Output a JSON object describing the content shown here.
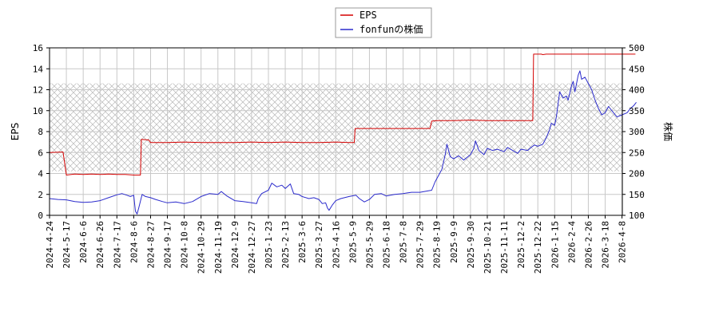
{
  "chart_data": {
    "type": "line",
    "ylabel_left": "EPS",
    "ylabel_right": "株価",
    "y_left_lim": [
      0,
      16
    ],
    "y_left_ticks": [
      "0",
      "2",
      "4",
      "6",
      "8",
      "10",
      "12",
      "14",
      "16"
    ],
    "y_right_lim": [
      100,
      500
    ],
    "y_right_ticks": [
      "100",
      "150",
      "200",
      "250",
      "300",
      "350",
      "400",
      "450",
      "500"
    ],
    "x_ticks": [
      "2024-4-24",
      "2024-5-17",
      "2024-6-6",
      "2024-6-26",
      "2024-7-17",
      "2024-8-6",
      "2024-8-27",
      "2024-9-17",
      "2024-10-8",
      "2024-10-29",
      "2024-11-19",
      "2024-12-9",
      "2024-12-27",
      "2025-1-23",
      "2025-2-13",
      "2025-3-6",
      "2025-3-27",
      "2025-4-16",
      "2025-5-9",
      "2025-5-29",
      "2025-6-18",
      "2025-7-8",
      "2025-7-29",
      "2025-8-19",
      "2025-9-9",
      "2025-9-30",
      "2025-10-21",
      "2025-11-11",
      "2025-12-2",
      "2025-12-22",
      "2026-1-15",
      "2026-2-4",
      "2026-2-26",
      "2026-3-18",
      "2026-4-8"
    ],
    "grid": true,
    "legend_position": "top-center",
    "hatched_band_right_axis": [
      205,
      415
    ],
    "series": [
      {
        "name": "EPS",
        "axis": "left",
        "color": "#d40000",
        "points": [
          [
            0,
            6.0
          ],
          [
            0.8,
            6.05
          ],
          [
            1.0,
            3.85
          ],
          [
            1.5,
            3.95
          ],
          [
            2.0,
            3.9
          ],
          [
            2.5,
            3.95
          ],
          [
            3.0,
            3.9
          ],
          [
            3.5,
            3.95
          ],
          [
            4.0,
            3.9
          ],
          [
            4.5,
            3.9
          ],
          [
            5.0,
            3.85
          ],
          [
            5.4,
            3.85
          ],
          [
            5.45,
            7.25
          ],
          [
            5.9,
            7.2
          ],
          [
            6.0,
            6.95
          ],
          [
            7.0,
            6.95
          ],
          [
            8.0,
            7.0
          ],
          [
            9.0,
            6.95
          ],
          [
            10.0,
            6.95
          ],
          [
            11.0,
            6.95
          ],
          [
            12.0,
            7.0
          ],
          [
            13.0,
            6.95
          ],
          [
            14.0,
            7.0
          ],
          [
            15.0,
            6.95
          ],
          [
            16.0,
            6.95
          ],
          [
            17.0,
            7.0
          ],
          [
            17.8,
            6.95
          ],
          [
            18.1,
            6.95
          ],
          [
            18.15,
            8.3
          ],
          [
            19.0,
            8.3
          ],
          [
            20.0,
            8.3
          ],
          [
            21.0,
            8.3
          ],
          [
            22.0,
            8.3
          ],
          [
            22.6,
            8.3
          ],
          [
            22.7,
            9.0
          ],
          [
            23.0,
            9.05
          ],
          [
            24.0,
            9.05
          ],
          [
            25.0,
            9.1
          ],
          [
            26.0,
            9.05
          ],
          [
            27.0,
            9.05
          ],
          [
            28.0,
            9.05
          ],
          [
            28.7,
            9.05
          ],
          [
            28.75,
            15.4
          ],
          [
            29.2,
            15.4
          ],
          [
            29.3,
            15.35
          ],
          [
            29.5,
            15.4
          ],
          [
            30.0,
            15.4
          ],
          [
            31.0,
            15.4
          ],
          [
            32.0,
            15.4
          ],
          [
            33.0,
            15.4
          ],
          [
            34.0,
            15.4
          ],
          [
            34.8,
            15.4
          ]
        ]
      },
      {
        "name": "fonfunの株価",
        "axis": "right",
        "color": "#2b2bcc",
        "points": [
          [
            0,
            140
          ],
          [
            0.5,
            138
          ],
          [
            1.0,
            137
          ],
          [
            1.5,
            133
          ],
          [
            2.0,
            131
          ],
          [
            2.5,
            132
          ],
          [
            3.0,
            135
          ],
          [
            3.5,
            142
          ],
          [
            4.0,
            149
          ],
          [
            4.3,
            152
          ],
          [
            4.6,
            148
          ],
          [
            4.8,
            145
          ],
          [
            5.0,
            148
          ],
          [
            5.1,
            110
          ],
          [
            5.2,
            103
          ],
          [
            5.3,
            118
          ],
          [
            5.5,
            150
          ],
          [
            5.7,
            145
          ],
          [
            6.0,
            142
          ],
          [
            6.3,
            138
          ],
          [
            6.7,
            133
          ],
          [
            7.0,
            130
          ],
          [
            7.5,
            132
          ],
          [
            8.0,
            128
          ],
          [
            8.5,
            133
          ],
          [
            9.0,
            145
          ],
          [
            9.5,
            152
          ],
          [
            10.0,
            150
          ],
          [
            10.2,
            157
          ],
          [
            10.5,
            147
          ],
          [
            11.0,
            135
          ],
          [
            11.5,
            133
          ],
          [
            12.0,
            130
          ],
          [
            12.3,
            128
          ],
          [
            12.4,
            140
          ],
          [
            12.6,
            152
          ],
          [
            13.0,
            160
          ],
          [
            13.2,
            177
          ],
          [
            13.5,
            168
          ],
          [
            13.8,
            172
          ],
          [
            14.0,
            164
          ],
          [
            14.3,
            175
          ],
          [
            14.5,
            152
          ],
          [
            14.8,
            150
          ],
          [
            15.0,
            145
          ],
          [
            15.4,
            140
          ],
          [
            15.7,
            142
          ],
          [
            16.0,
            138
          ],
          [
            16.2,
            128
          ],
          [
            16.4,
            130
          ],
          [
            16.5,
            118
          ],
          [
            16.6,
            112
          ],
          [
            16.8,
            125
          ],
          [
            17.0,
            135
          ],
          [
            17.3,
            140
          ],
          [
            17.8,
            145
          ],
          [
            18.2,
            148
          ],
          [
            18.4,
            140
          ],
          [
            18.7,
            132
          ],
          [
            19.0,
            138
          ],
          [
            19.3,
            150
          ],
          [
            19.7,
            152
          ],
          [
            20.0,
            146
          ],
          [
            20.5,
            150
          ],
          [
            21.0,
            152
          ],
          [
            21.5,
            155
          ],
          [
            22.0,
            155
          ],
          [
            22.4,
            158
          ],
          [
            22.7,
            160
          ],
          [
            22.9,
            180
          ],
          [
            23.1,
            195
          ],
          [
            23.3,
            210
          ],
          [
            23.5,
            245
          ],
          [
            23.6,
            270
          ],
          [
            23.7,
            255
          ],
          [
            23.8,
            240
          ],
          [
            24.0,
            235
          ],
          [
            24.3,
            242
          ],
          [
            24.6,
            232
          ],
          [
            25.0,
            245
          ],
          [
            25.2,
            260
          ],
          [
            25.3,
            278
          ],
          [
            25.5,
            255
          ],
          [
            25.8,
            245
          ],
          [
            26.0,
            260
          ],
          [
            26.3,
            255
          ],
          [
            26.6,
            258
          ],
          [
            27.0,
            252
          ],
          [
            27.2,
            262
          ],
          [
            27.5,
            255
          ],
          [
            27.8,
            248
          ],
          [
            28.0,
            258
          ],
          [
            28.4,
            255
          ],
          [
            28.6,
            262
          ],
          [
            28.8,
            268
          ],
          [
            29.0,
            265
          ],
          [
            29.3,
            270
          ],
          [
            29.5,
            285
          ],
          [
            29.7,
            305
          ],
          [
            29.8,
            320
          ],
          [
            30.0,
            315
          ],
          [
            30.1,
            335
          ],
          [
            30.2,
            365
          ],
          [
            30.3,
            395
          ],
          [
            30.5,
            380
          ],
          [
            30.7,
            385
          ],
          [
            30.8,
            375
          ],
          [
            31.0,
            410
          ],
          [
            31.1,
            420
          ],
          [
            31.2,
            395
          ],
          [
            31.4,
            435
          ],
          [
            31.5,
            445
          ],
          [
            31.6,
            425
          ],
          [
            31.8,
            430
          ],
          [
            32.0,
            415
          ],
          [
            32.2,
            400
          ],
          [
            32.4,
            375
          ],
          [
            32.6,
            355
          ],
          [
            32.8,
            340
          ],
          [
            33.0,
            345
          ],
          [
            33.2,
            360
          ],
          [
            33.5,
            345
          ],
          [
            33.7,
            335
          ],
          [
            34.0,
            340
          ],
          [
            34.3,
            345
          ],
          [
            34.5,
            355
          ],
          [
            34.7,
            362
          ],
          [
            34.85,
            370
          ]
        ]
      }
    ]
  }
}
